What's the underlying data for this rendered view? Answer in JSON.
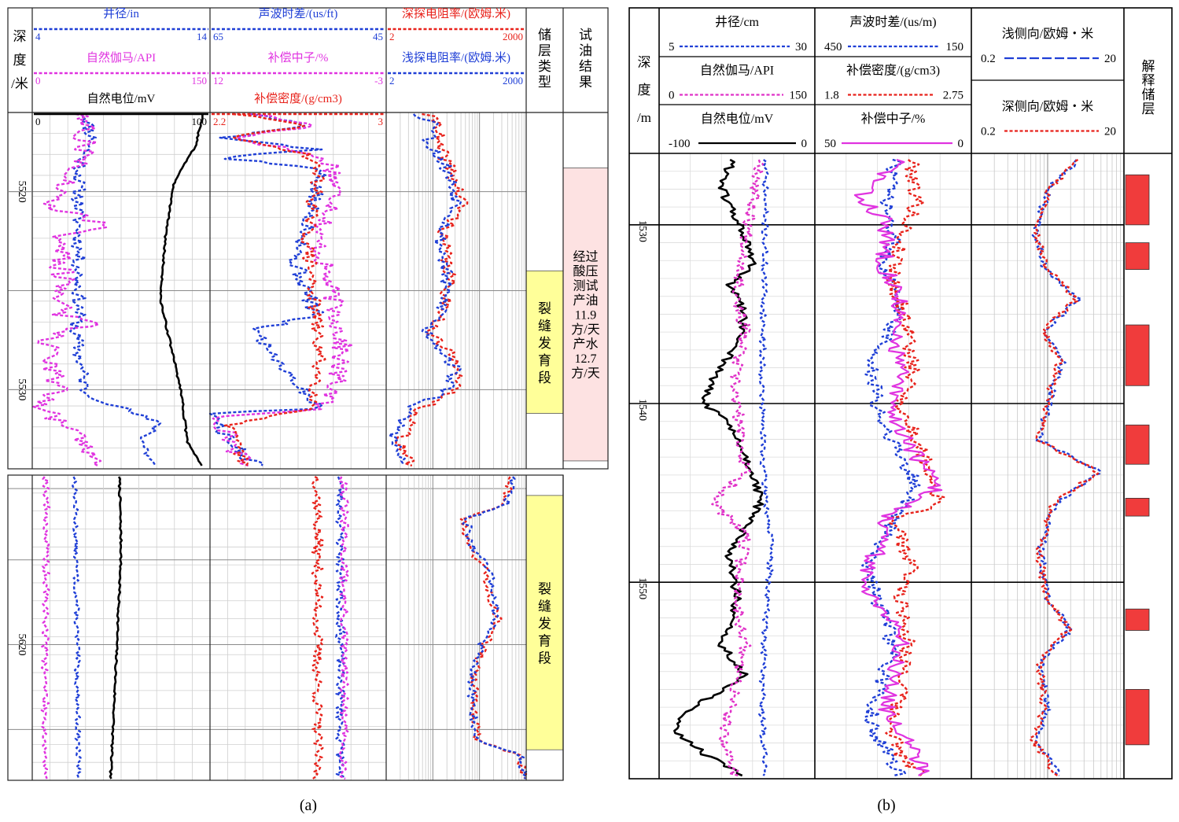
{
  "chart_data": [
    {
      "id": "a",
      "type": "line",
      "caption": "(a)",
      "depth_header": [
        "深",
        "度",
        "/米"
      ],
      "depth_units": "米",
      "upper_interval": {
        "range": [
          5516,
          5534
        ],
        "ticks": [
          5520,
          5530
        ]
      },
      "lower_interval": {
        "range": [
          5610,
          5628
        ],
        "ticks": [
          5620
        ]
      },
      "tracks": [
        {
          "curves": [
            {
              "name": "井径/in",
              "color": "#1f3fd6",
              "dash": true,
              "min": "4",
              "max": "14"
            },
            {
              "name": "自然伽马/API",
              "color": "#e033e0",
              "dash": true,
              "min": "0",
              "max": "150"
            },
            {
              "name": "自然电位/mV",
              "color": "#000000",
              "dash": false,
              "min": "0",
              "max": "100"
            }
          ]
        },
        {
          "curves": [
            {
              "name": "声波时差/(us/ft)",
              "color": "#1f3fd6",
              "dash": true,
              "min": "65",
              "max": "45"
            },
            {
              "name": "补偿中子/%",
              "color": "#e033e0",
              "dash": true,
              "min": "12",
              "max": "-3"
            },
            {
              "name": "补偿密度/(g/cm3)",
              "color": "#e8231c",
              "dash": true,
              "min": "2.2",
              "max": "3"
            }
          ]
        },
        {
          "curves": [
            {
              "name": "深探电阻率/(欧姆.米)",
              "color": "#e8231c",
              "dash": true,
              "min": "2",
              "max": "2000"
            },
            {
              "name": "浅探电阻率/(欧姆.米)",
              "color": "#1f3fd6",
              "dash": true,
              "min": "2",
              "max": "2000"
            }
          ]
        }
      ],
      "reservoir_header": [
        "储",
        "层",
        "类",
        "型"
      ],
      "result_header": [
        "试",
        "油",
        "结",
        "果"
      ],
      "reservoir_zones": [
        {
          "label": [
            "裂",
            "缝",
            "发",
            "育",
            "段"
          ],
          "color": "#ffff99",
          "interval": "upper",
          "from": 5524,
          "to": 5531.2
        },
        {
          "label": [
            "裂",
            "缝",
            "发",
            "育",
            "段"
          ],
          "color": "#ffff99",
          "interval": "lower",
          "from": 5611.2,
          "to": 5626.2
        }
      ],
      "test_result": {
        "lines": [
          "经过",
          "酸压",
          "测试",
          "产油",
          "11.9",
          "方/天",
          "产水",
          "12.7",
          "方/天"
        ],
        "color": "#fde2e2",
        "from": 5518.8,
        "to": 5533.6
      }
    },
    {
      "id": "b",
      "type": "line",
      "caption": "(b)",
      "depth_header": [
        "深",
        "度",
        "/m"
      ],
      "depth_units": "m",
      "range": [
        1526,
        1561
      ],
      "ticks": [
        1530,
        1540,
        1550
      ],
      "tracks": [
        {
          "curves": [
            {
              "name": "井径/cm",
              "color": "#1f3fd6",
              "dash": true,
              "min": "5",
              "max": "30"
            },
            {
              "name": "自然伽马/API",
              "color": "#e033c8",
              "dash": true,
              "min": "0",
              "max": "150"
            },
            {
              "name": "自然电位/mV",
              "color": "#000000",
              "dash": false,
              "min": "-100",
              "max": "0"
            }
          ]
        },
        {
          "curves": [
            {
              "name": "声波时差/(us/m)",
              "color": "#1f3fd6",
              "dash": true,
              "min": "450",
              "max": "150"
            },
            {
              "name": "补偿密度/(g/cm3)",
              "color": "#e8231c",
              "dash": true,
              "min": "1.8",
              "max": "2.75"
            },
            {
              "name": "补偿中子/%",
              "color": "#e033e0",
              "dash": false,
              "min": "50",
              "max": "0"
            }
          ]
        },
        {
          "curves": [
            {
              "name": "浅侧向/欧姆・米",
              "color": "#1f3fd6",
              "dash": true,
              "min": "0.2",
              "max": "20"
            },
            {
              "name": "深侧向/欧姆・米",
              "color": "#e8231c",
              "dash": true,
              "min": "0.2",
              "max": "20"
            }
          ]
        }
      ],
      "interpretation_header": [
        "解",
        "释",
        "储",
        "层"
      ],
      "interpreted_reservoirs": [
        {
          "from": 1527.2,
          "to": 1530.0
        },
        {
          "from": 1531.0,
          "to": 1532.5
        },
        {
          "from": 1535.6,
          "to": 1539.0
        },
        {
          "from": 1541.2,
          "to": 1543.4
        },
        {
          "from": 1545.3,
          "to": 1546.3
        },
        {
          "from": 1551.5,
          "to": 1552.7
        },
        {
          "from": 1556.0,
          "to": 1559.1
        }
      ],
      "reservoir_color": "#f03c3c"
    }
  ]
}
